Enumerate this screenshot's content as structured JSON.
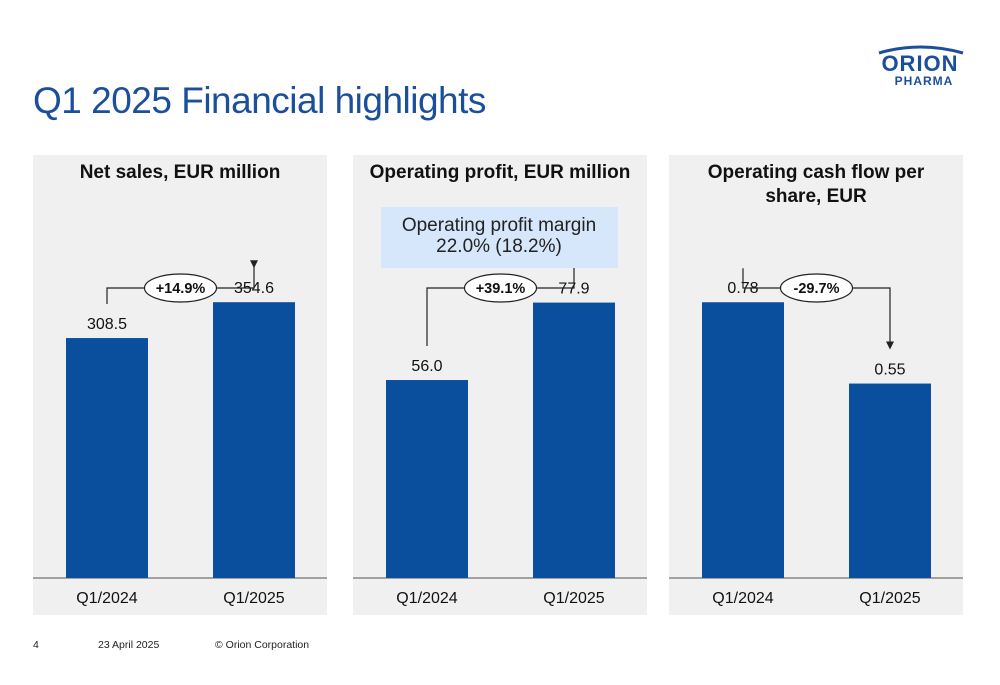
{
  "slide": {
    "title": "Q1 2025 Financial highlights",
    "logo_top": "ORION",
    "logo_bottom": "PHARMA"
  },
  "footer": {
    "page_number": "4",
    "date": "23 April 2025",
    "copyright": "© Orion Corporation"
  },
  "colors": {
    "bar": "#0a4f9e",
    "title": "#1b4f9c",
    "panel_bg": "#f0f0f0",
    "callout_bg": "#d6e6fb"
  },
  "chart_data": [
    {
      "type": "bar",
      "title": "Net sales, EUR  million",
      "categories": [
        "Q1/2024",
        "Q1/2025"
      ],
      "values": [
        308.5,
        354.6
      ],
      "value_labels": [
        "308.5",
        "354.6"
      ],
      "change_label": "+14.9%",
      "ylim": [
        0,
        450
      ],
      "grid": false
    },
    {
      "type": "bar",
      "title": "Operating profit, EUR million",
      "categories": [
        "Q1/2024",
        "Q1/2025"
      ],
      "values": [
        56.0,
        77.9
      ],
      "value_labels": [
        "56.0",
        "77.9"
      ],
      "change_label": "+39.1%",
      "callout": [
        "Operating profit margin",
        "22.0% (18.2%)"
      ],
      "ylim": [
        0,
        99
      ],
      "grid": false
    },
    {
      "type": "bar",
      "title": "Operating cash flow per share, EUR",
      "categories": [
        "Q1/2024",
        "Q1/2025"
      ],
      "values": [
        0.78,
        0.55
      ],
      "value_labels": [
        "0.78",
        "0.55"
      ],
      "change_label": "-29.7%",
      "ylim": [
        0,
        0.99
      ],
      "grid": false
    }
  ]
}
